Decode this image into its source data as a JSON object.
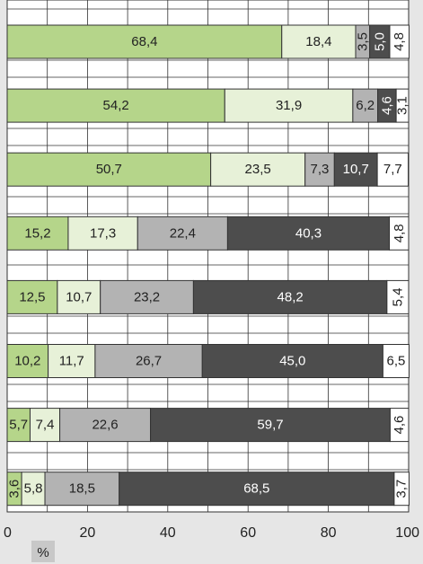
{
  "chart_data": {
    "type": "bar",
    "orientation": "horizontal",
    "stacked": true,
    "title": "",
    "xlabel": "%",
    "ylabel": "",
    "xlim": [
      0,
      100
    ],
    "xticks": [
      "0",
      "20",
      "40",
      "60",
      "80",
      "100"
    ],
    "grid": true,
    "legend": "none",
    "categories": [
      "",
      "",
      "",
      "",
      "",
      "",
      "",
      ""
    ],
    "series": [
      {
        "color": "#b5d58a",
        "text_color": "#222222",
        "values": [
          68.4,
          54.2,
          50.7,
          15.2,
          12.5,
          10.2,
          5.7,
          3.6
        ],
        "labels": [
          "68,4",
          "54,2",
          "50,7",
          "15,2",
          "12,5",
          "10,2",
          "5,7",
          "3,6"
        ]
      },
      {
        "color": "#e7f1d8",
        "text_color": "#222222",
        "values": [
          18.4,
          31.9,
          23.5,
          17.3,
          10.7,
          11.7,
          7.4,
          5.8
        ],
        "labels": [
          "18,4",
          "31,9",
          "23,5",
          "17,3",
          "10,7",
          "11,7",
          "7,4",
          "5,8"
        ]
      },
      {
        "color": "#b3b3b3",
        "text_color": "#222222",
        "values": [
          3.5,
          6.2,
          7.3,
          22.4,
          23.2,
          26.7,
          22.6,
          18.5
        ],
        "labels": [
          "3,5",
          "6,2",
          "7,3",
          "22,4",
          "23,2",
          "26,7",
          "22,6",
          "18,5"
        ]
      },
      {
        "color": "#4d4d4d",
        "text_color": "#ffffff",
        "values": [
          5.0,
          4.6,
          10.7,
          40.3,
          48.2,
          45.0,
          59.7,
          68.5
        ],
        "labels": [
          "5,0",
          "4,6",
          "10,7",
          "40,3",
          "48,2",
          "45,0",
          "59,7",
          "68,5"
        ]
      },
      {
        "color": "#ffffff",
        "text_color": "#222222",
        "values": [
          4.8,
          3.1,
          7.7,
          4.8,
          5.4,
          6.5,
          4.6,
          3.7
        ],
        "labels": [
          "4,8",
          "3,1",
          "7,7",
          "4,8",
          "5,4",
          "6,5",
          "4,6",
          "3,7"
        ]
      }
    ],
    "label_rotated": [
      [
        false,
        false,
        true,
        true,
        true
      ],
      [
        false,
        false,
        false,
        true,
        true
      ],
      [
        false,
        false,
        false,
        false,
        false
      ],
      [
        false,
        false,
        false,
        false,
        true
      ],
      [
        false,
        false,
        false,
        false,
        true
      ],
      [
        false,
        false,
        false,
        false,
        false
      ],
      [
        false,
        false,
        false,
        false,
        true
      ],
      [
        true,
        false,
        false,
        false,
        true
      ]
    ]
  }
}
